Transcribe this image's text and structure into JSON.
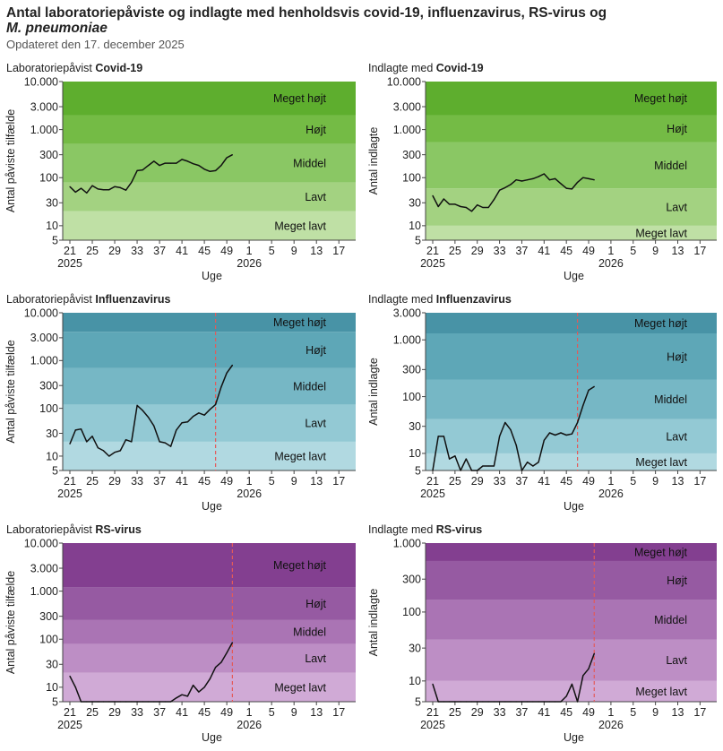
{
  "header": {
    "title_line1": "Antal laboratoriepåviste og indlagte med henholdsvis covid-19, influenzavirus, RS-virus og",
    "title_line2": "M. pneumoniae",
    "updated": "Opdateret den 17. december 2025"
  },
  "common": {
    "x_label": "Uge",
    "x_ticks": [
      "21",
      "25",
      "29",
      "33",
      "37",
      "41",
      "45",
      "49",
      "1",
      "5",
      "9",
      "13",
      "17"
    ],
    "year_left": "2025",
    "year_right": "2026",
    "level_names": [
      "Meget lavt",
      "Lavt",
      "Middel",
      "Højt",
      "Meget højt"
    ]
  },
  "colors": {
    "covid": [
      "#bfe0a5",
      "#a3d281",
      "#8ac764",
      "#74bb45",
      "#5eae2e"
    ],
    "influenza": [
      "#b1d9e1",
      "#93c9d4",
      "#76b7c5",
      "#5ea7b7",
      "#4893a6"
    ],
    "rsv": [
      "#d0aad6",
      "#bd8ec5",
      "#aa74b4",
      "#965aa2",
      "#833f90"
    ],
    "line": "#111111",
    "marker": "#e35a5a"
  },
  "chart_data": [
    {
      "id": "covid-lab",
      "type": "line",
      "title_prefix": "Laboratoriepåvist ",
      "title_bold": "Covid-19",
      "ylabel": "Antal påviste tilfælde",
      "y_scale": "log",
      "ylim": [
        5,
        10000
      ],
      "y_ticks": [
        {
          "v": 5,
          "l": "5"
        },
        {
          "v": 10,
          "l": "10"
        },
        {
          "v": 30,
          "l": "30"
        },
        {
          "v": 100,
          "l": "100"
        },
        {
          "v": 300,
          "l": "300"
        },
        {
          "v": 1000,
          "l": "1.000"
        },
        {
          "v": 3000,
          "l": "3.000"
        },
        {
          "v": 10000,
          "l": "10.000"
        }
      ],
      "bands": [
        [
          5,
          20
        ],
        [
          20,
          80
        ],
        [
          80,
          500
        ],
        [
          500,
          2000
        ],
        [
          2000,
          10000
        ]
      ],
      "marker_week": null,
      "x": [
        21,
        22,
        23,
        24,
        25,
        26,
        27,
        28,
        29,
        30,
        31,
        32,
        33,
        34,
        35,
        36,
        37,
        38,
        39,
        40,
        41,
        42,
        43,
        44,
        45,
        46,
        47,
        48,
        49,
        50
      ],
      "values": [
        65,
        50,
        60,
        48,
        68,
        58,
        56,
        56,
        65,
        62,
        55,
        80,
        140,
        145,
        180,
        220,
        180,
        200,
        200,
        200,
        240,
        220,
        195,
        180,
        150,
        135,
        140,
        180,
        260,
        300
      ]
    },
    {
      "id": "covid-hosp",
      "type": "line",
      "title_prefix": "Indlagte med ",
      "title_bold": "Covid-19",
      "ylabel": "Antal indlagte",
      "y_scale": "log",
      "ylim": [
        5,
        10000
      ],
      "y_ticks": [
        {
          "v": 5,
          "l": "5"
        },
        {
          "v": 10,
          "l": "10"
        },
        {
          "v": 30,
          "l": "30"
        },
        {
          "v": 100,
          "l": "100"
        },
        {
          "v": 300,
          "l": "300"
        },
        {
          "v": 1000,
          "l": "1.000"
        },
        {
          "v": 3000,
          "l": "3.000"
        },
        {
          "v": 10000,
          "l": "10.000"
        }
      ],
      "bands": [
        [
          5,
          10
        ],
        [
          10,
          60
        ],
        [
          60,
          550
        ],
        [
          550,
          2000
        ],
        [
          2000,
          10000
        ]
      ],
      "marker_week": null,
      "x": [
        21,
        22,
        23,
        24,
        25,
        26,
        27,
        28,
        29,
        30,
        31,
        32,
        33,
        34,
        35,
        36,
        37,
        38,
        39,
        40,
        41,
        42,
        43,
        44,
        45,
        46,
        47,
        48,
        49,
        50
      ],
      "values": [
        42,
        25,
        36,
        28,
        28,
        25,
        24,
        20,
        27,
        24,
        24,
        35,
        55,
        62,
        72,
        90,
        85,
        90,
        95,
        105,
        120,
        90,
        95,
        75,
        60,
        58,
        80,
        100,
        95,
        90
      ]
    },
    {
      "id": "flu-lab",
      "type": "line",
      "title_prefix": "Laboratoriepåvist ",
      "title_bold": "Influenzavirus",
      "ylabel": "Antal påviste tilfælde",
      "y_scale": "log",
      "ylim": [
        5,
        10000
      ],
      "y_ticks": [
        {
          "v": 5,
          "l": "5"
        },
        {
          "v": 10,
          "l": "10"
        },
        {
          "v": 30,
          "l": "30"
        },
        {
          "v": 100,
          "l": "100"
        },
        {
          "v": 300,
          "l": "300"
        },
        {
          "v": 1000,
          "l": "1.000"
        },
        {
          "v": 3000,
          "l": "3.000"
        },
        {
          "v": 10000,
          "l": "10.000"
        }
      ],
      "bands": [
        [
          5,
          20
        ],
        [
          20,
          120
        ],
        [
          120,
          700
        ],
        [
          700,
          4000
        ],
        [
          4000,
          10000
        ]
      ],
      "marker_week": 47,
      "x": [
        21,
        22,
        23,
        24,
        25,
        26,
        27,
        28,
        29,
        30,
        31,
        32,
        33,
        34,
        35,
        36,
        37,
        38,
        39,
        40,
        41,
        42,
        43,
        44,
        45,
        46,
        47,
        48,
        49,
        50
      ],
      "values": [
        18,
        35,
        37,
        20,
        26,
        15,
        13,
        10,
        12,
        13,
        22,
        20,
        115,
        90,
        65,
        43,
        20,
        19,
        16,
        35,
        50,
        52,
        68,
        80,
        72,
        95,
        120,
        280,
        550,
        800
      ]
    },
    {
      "id": "flu-hosp",
      "type": "line",
      "title_prefix": "Indlagte med ",
      "title_bold": "Influenzavirus",
      "ylabel": "Antal indlagte",
      "y_scale": "log",
      "ylim": [
        5,
        3000
      ],
      "y_ticks": [
        {
          "v": 5,
          "l": "5"
        },
        {
          "v": 10,
          "l": "10"
        },
        {
          "v": 30,
          "l": "30"
        },
        {
          "v": 100,
          "l": "100"
        },
        {
          "v": 300,
          "l": "300"
        },
        {
          "v": 1000,
          "l": "1.000"
        },
        {
          "v": 3000,
          "l": "3.000"
        }
      ],
      "bands": [
        [
          5,
          10
        ],
        [
          10,
          40
        ],
        [
          40,
          200
        ],
        [
          200,
          1300
        ],
        [
          1300,
          3000
        ]
      ],
      "marker_week": 47,
      "x": [
        21,
        22,
        23,
        24,
        25,
        26,
        27,
        28,
        29,
        30,
        31,
        32,
        33,
        34,
        35,
        36,
        37,
        38,
        39,
        40,
        41,
        42,
        43,
        44,
        45,
        46,
        47,
        48,
        49,
        50
      ],
      "values": [
        5,
        20,
        20,
        8,
        9,
        5,
        8,
        4.8,
        5,
        6,
        6,
        6,
        20,
        35,
        26,
        14,
        5,
        7,
        6,
        7,
        17,
        23,
        21,
        23,
        21,
        22,
        35,
        70,
        130,
        150
      ]
    },
    {
      "id": "rsv-lab",
      "type": "line",
      "title_prefix": "Laboratoriepåvist ",
      "title_bold": "RS-virus",
      "ylabel": "Antal påviste tilfælde",
      "y_scale": "log",
      "ylim": [
        5,
        10000
      ],
      "y_ticks": [
        {
          "v": 5,
          "l": "5"
        },
        {
          "v": 10,
          "l": "10"
        },
        {
          "v": 30,
          "l": "30"
        },
        {
          "v": 100,
          "l": "100"
        },
        {
          "v": 300,
          "l": "300"
        },
        {
          "v": 1000,
          "l": "1.000"
        },
        {
          "v": 3000,
          "l": "3.000"
        },
        {
          "v": 10000,
          "l": "10.000"
        }
      ],
      "bands": [
        [
          5,
          20
        ],
        [
          20,
          80
        ],
        [
          80,
          250
        ],
        [
          250,
          1200
        ],
        [
          1200,
          10000
        ]
      ],
      "marker_week": 50,
      "x": [
        21,
        22,
        23,
        24,
        25,
        26,
        27,
        28,
        29,
        30,
        31,
        32,
        33,
        34,
        35,
        36,
        37,
        38,
        39,
        40,
        41,
        42,
        43,
        44,
        45,
        46,
        47,
        48,
        49,
        50
      ],
      "values": [
        17,
        10,
        5,
        5,
        5,
        5,
        5,
        5,
        5,
        5,
        5,
        5,
        5,
        5,
        5,
        5,
        5,
        5,
        5,
        6,
        7,
        6.5,
        11,
        8,
        10,
        15,
        26,
        33,
        52,
        85
      ]
    },
    {
      "id": "rsv-hosp",
      "type": "line",
      "title_prefix": "Indlagte med ",
      "title_bold": "RS-virus",
      "ylabel": "Antal indlagte",
      "y_scale": "log",
      "ylim": [
        5,
        1000
      ],
      "y_ticks": [
        {
          "v": 5,
          "l": "5"
        },
        {
          "v": 10,
          "l": "10"
        },
        {
          "v": 30,
          "l": "30"
        },
        {
          "v": 100,
          "l": "100"
        },
        {
          "v": 300,
          "l": "300"
        },
        {
          "v": 1000,
          "l": "1.000"
        }
      ],
      "bands": [
        [
          5,
          10
        ],
        [
          10,
          40
        ],
        [
          40,
          150
        ],
        [
          150,
          550
        ],
        [
          550,
          1000
        ]
      ],
      "marker_week": 50,
      "x": [
        21,
        22,
        23,
        24,
        25,
        26,
        27,
        28,
        29,
        30,
        31,
        32,
        33,
        34,
        35,
        36,
        37,
        38,
        39,
        40,
        41,
        42,
        43,
        44,
        45,
        46,
        47,
        48,
        49,
        50
      ],
      "values": [
        9,
        5,
        5,
        5,
        5,
        5,
        5,
        5,
        5,
        5,
        5,
        5,
        5,
        5,
        5,
        5,
        5,
        5,
        5,
        5,
        5,
        5,
        5,
        5,
        6,
        9,
        5,
        12,
        15,
        25
      ]
    }
  ]
}
